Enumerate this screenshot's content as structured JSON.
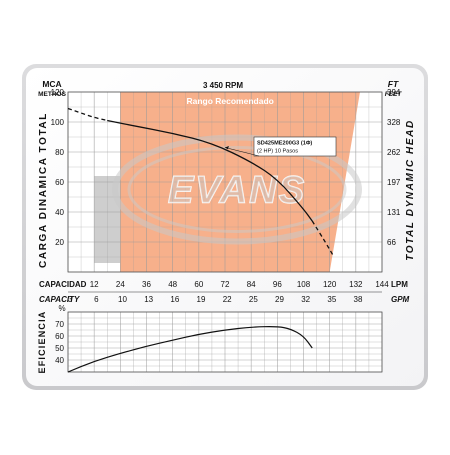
{
  "header": {
    "rpm": "3 450 RPM",
    "left_unit_top": "MCA",
    "left_unit_bottom": "METROS",
    "right_unit_top": "FT",
    "right_unit_bottom": "FEET"
  },
  "axes": {
    "left_title": "CARGA DINAMICA TOTAL",
    "right_title": "TOTAL DYNAMIC HEAD",
    "lpm_label": "CAPACIDAD",
    "lpm_unit": "LPM",
    "gpm_label": "CAPACITY",
    "gpm_unit": "GPM",
    "efficiency_title": "EFICIENCIA",
    "efficiency_unit": "%"
  },
  "watermark": {
    "text": "EVANS"
  },
  "colors": {
    "recommended_band": "#f6a981",
    "grid": "#9a9a9a",
    "curve": "#111111",
    "panel_frame": "#cfcfd2",
    "watermark": "#c9c9c9"
  },
  "chart_data": [
    {
      "type": "line",
      "series": [
        {
          "name": "SD425ME200G3 (1Φ) (2 HP) 10 Pasos",
          "segments": [
            {
              "style": "dashed",
              "x": [
                0,
                6,
                12,
                18
              ],
              "y": [
                109,
                106,
                103,
                101
              ]
            },
            {
              "style": "solid",
              "x": [
                18,
                30,
                48,
                66,
                84,
                96,
                108,
                112
              ],
              "y": [
                101,
                97.5,
                92.5,
                86,
                73.5,
                62,
                42,
                34
              ]
            },
            {
              "style": "dashed",
              "x": [
                112,
                118,
                122
              ],
              "y": [
                34,
                20,
                10
              ]
            }
          ]
        }
      ],
      "annotation": {
        "line1": "SD425ME200G3 (1Φ)",
        "line2": "(2 HP)  10 Pasos"
      },
      "recommended_range": {
        "label": "Rango Recomendado",
        "x_start": 24,
        "x_end": 120
      },
      "x_axis": {
        "unit": "LPM",
        "range": [
          0,
          144
        ],
        "ticks": [
          12,
          24,
          36,
          48,
          60,
          72,
          84,
          96,
          108,
          120,
          132,
          144
        ],
        "tick_labels": [
          "12",
          "24",
          "36",
          "48",
          "60",
          "72",
          "84",
          "96",
          "108",
          "120",
          "132",
          "144"
        ]
      },
      "x_secondary_axis": {
        "unit": "GPM",
        "ticks_lpm": [
          12,
          24,
          36,
          48,
          60,
          72,
          84,
          96,
          108,
          120,
          132,
          144
        ],
        "tick_labels": [
          "3",
          "6",
          "10",
          "13",
          "16",
          "19",
          "22",
          "25",
          "29",
          "32",
          "35",
          "38"
        ]
      },
      "y_axis": {
        "unit": "MCA",
        "range": [
          0,
          120
        ],
        "ticks": [
          20,
          40,
          60,
          80,
          100,
          120
        ],
        "tick_labels": [
          "20",
          "40",
          "60",
          "80",
          "100",
          "120"
        ]
      },
      "y_secondary_axis": {
        "unit": "FT",
        "ticks_mca": [
          20,
          40,
          60,
          80,
          100,
          120
        ],
        "tick_labels": [
          "66",
          "131",
          "197",
          "262",
          "328",
          "394"
        ]
      },
      "grid": true
    },
    {
      "type": "line",
      "series": [
        {
          "name": "Eficiencia",
          "x": [
            0,
            12,
            24,
            36,
            48,
            60,
            72,
            84,
            96,
            102,
            108,
            112
          ],
          "y": [
            30,
            39,
            45.5,
            51.5,
            56.5,
            61.5,
            65,
            67.5,
            68,
            66,
            60,
            50
          ]
        }
      ],
      "x_axis": {
        "range": [
          0,
          144
        ]
      },
      "y_axis": {
        "range": [
          30,
          80
        ],
        "ticks": [
          40,
          50,
          60,
          70
        ],
        "tick_labels": [
          "40",
          "50",
          "60",
          "70"
        ]
      },
      "grid": true
    }
  ]
}
